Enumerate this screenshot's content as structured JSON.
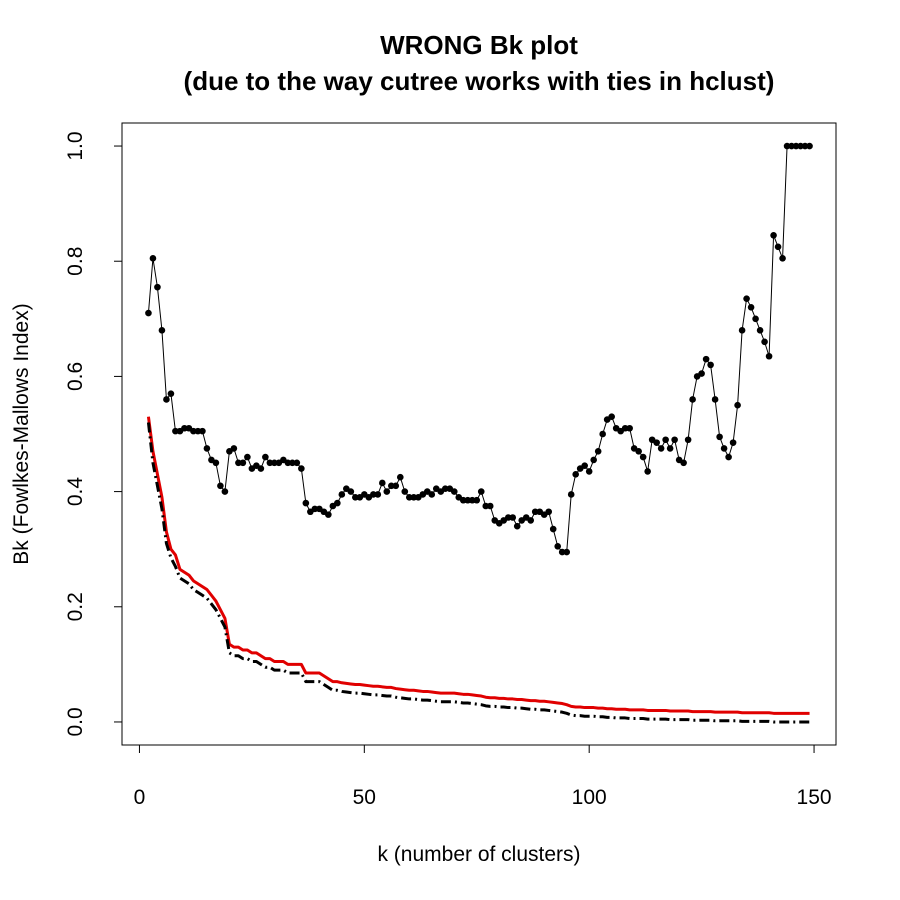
{
  "chart_data": {
    "type": "line",
    "title": [
      "WRONG Bk plot",
      "(due to the way cutree works with ties in hclust)"
    ],
    "x_label": "k (number of clusters)",
    "y_label": "Bk (Fowlkes-Mallows Index)",
    "xlim": [
      -3.88,
      154.88
    ],
    "ylim": [
      -0.04,
      1.04
    ],
    "xticks": [
      0,
      50,
      100,
      150
    ],
    "yticks": [
      {
        "value": 0,
        "label": "0.0"
      },
      {
        "value": 0.2,
        "label": "0.2"
      },
      {
        "value": 0.4,
        "label": "0.4"
      },
      {
        "value": 0.6,
        "label": "0.6"
      },
      {
        "value": 0.8,
        "label": "0.8"
      },
      {
        "value": 1,
        "label": "1.0"
      }
    ],
    "x": [
      2,
      3,
      4,
      5,
      6,
      7,
      8,
      9,
      10,
      11,
      12,
      13,
      14,
      15,
      16,
      17,
      18,
      19,
      20,
      21,
      22,
      23,
      24,
      25,
      26,
      27,
      28,
      29,
      30,
      31,
      32,
      33,
      34,
      35,
      36,
      37,
      38,
      39,
      40,
      41,
      42,
      43,
      44,
      45,
      46,
      47,
      48,
      49,
      50,
      51,
      52,
      53,
      54,
      55,
      56,
      57,
      58,
      59,
      60,
      61,
      62,
      63,
      64,
      65,
      66,
      67,
      68,
      69,
      70,
      71,
      72,
      73,
      74,
      75,
      76,
      77,
      78,
      79,
      80,
      81,
      82,
      83,
      84,
      85,
      86,
      87,
      88,
      89,
      90,
      91,
      92,
      93,
      94,
      95,
      96,
      97,
      98,
      99,
      100,
      101,
      102,
      103,
      104,
      105,
      106,
      107,
      108,
      109,
      110,
      111,
      112,
      113,
      114,
      115,
      116,
      117,
      118,
      119,
      120,
      121,
      122,
      123,
      124,
      125,
      126,
      127,
      128,
      129,
      130,
      131,
      132,
      133,
      134,
      135,
      136,
      137,
      138,
      139,
      140,
      141,
      142,
      143,
      144,
      145,
      146,
      147,
      148,
      149
    ],
    "series": [
      {
        "color": "#000000",
        "style": "points-line",
        "values": [
          0.71,
          0.805,
          0.755,
          0.68,
          0.56,
          0.57,
          0.505,
          0.505,
          0.51,
          0.51,
          0.505,
          0.505,
          0.505,
          0.475,
          0.455,
          0.45,
          0.41,
          0.4,
          0.47,
          0.475,
          0.45,
          0.45,
          0.46,
          0.44,
          0.445,
          0.44,
          0.46,
          0.45,
          0.45,
          0.45,
          0.455,
          0.45,
          0.45,
          0.45,
          0.44,
          0.38,
          0.365,
          0.37,
          0.37,
          0.365,
          0.36,
          0.375,
          0.38,
          0.395,
          0.405,
          0.4,
          0.39,
          0.39,
          0.395,
          0.39,
          0.395,
          0.395,
          0.415,
          0.4,
          0.41,
          0.41,
          0.425,
          0.4,
          0.39,
          0.39,
          0.39,
          0.395,
          0.4,
          0.395,
          0.405,
          0.4,
          0.405,
          0.405,
          0.4,
          0.39,
          0.385,
          0.385,
          0.385,
          0.385,
          0.4,
          0.375,
          0.375,
          0.35,
          0.345,
          0.35,
          0.355,
          0.355,
          0.34,
          0.35,
          0.355,
          0.35,
          0.365,
          0.365,
          0.36,
          0.365,
          0.335,
          0.305,
          0.295,
          0.295,
          0.395,
          0.43,
          0.44,
          0.445,
          0.435,
          0.455,
          0.47,
          0.5,
          0.525,
          0.53,
          0.51,
          0.505,
          0.51,
          0.51,
          0.475,
          0.47,
          0.46,
          0.435,
          0.49,
          0.485,
          0.475,
          0.49,
          0.475,
          0.49,
          0.455,
          0.45,
          0.49,
          0.56,
          0.6,
          0.605,
          0.63,
          0.62,
          0.56,
          0.495,
          0.475,
          0.46,
          0.485,
          0.55,
          0.68,
          0.735,
          0.72,
          0.7,
          0.68,
          0.66,
          0.635,
          0.845,
          0.825,
          0.805,
          1,
          1,
          1,
          1,
          1,
          1
        ]
      },
      {
        "color": "#e00000",
        "style": "line",
        "values": [
          0.53,
          0.47,
          0.43,
          0.39,
          0.33,
          0.3,
          0.29,
          0.265,
          0.26,
          0.255,
          0.245,
          0.24,
          0.235,
          0.23,
          0.22,
          0.21,
          0.195,
          0.18,
          0.135,
          0.13,
          0.13,
          0.125,
          0.125,
          0.12,
          0.12,
          0.115,
          0.11,
          0.11,
          0.105,
          0.105,
          0.105,
          0.1,
          0.1,
          0.1,
          0.1,
          0.085,
          0.085,
          0.085,
          0.085,
          0.08,
          0.075,
          0.07,
          0.07,
          0.068,
          0.067,
          0.066,
          0.065,
          0.065,
          0.064,
          0.063,
          0.062,
          0.062,
          0.061,
          0.06,
          0.06,
          0.058,
          0.057,
          0.056,
          0.055,
          0.055,
          0.054,
          0.053,
          0.053,
          0.052,
          0.051,
          0.05,
          0.05,
          0.05,
          0.05,
          0.049,
          0.048,
          0.048,
          0.047,
          0.046,
          0.045,
          0.043,
          0.042,
          0.042,
          0.041,
          0.041,
          0.04,
          0.04,
          0.039,
          0.039,
          0.038,
          0.037,
          0.037,
          0.036,
          0.036,
          0.035,
          0.034,
          0.033,
          0.032,
          0.03,
          0.027,
          0.026,
          0.026,
          0.025,
          0.025,
          0.025,
          0.024,
          0.024,
          0.023,
          0.023,
          0.022,
          0.022,
          0.022,
          0.021,
          0.021,
          0.021,
          0.021,
          0.02,
          0.02,
          0.02,
          0.02,
          0.02,
          0.019,
          0.019,
          0.019,
          0.019,
          0.019,
          0.018,
          0.018,
          0.018,
          0.018,
          0.018,
          0.017,
          0.017,
          0.017,
          0.017,
          0.017,
          0.017,
          0.016,
          0.016,
          0.016,
          0.016,
          0.016,
          0.016,
          0.016,
          0.015,
          0.015,
          0.015,
          0.015,
          0.015,
          0.015,
          0.015,
          0.015,
          0.015
        ]
      },
      {
        "color": "#000000",
        "style": "dashdot",
        "values": [
          0.52,
          0.45,
          0.41,
          0.37,
          0.31,
          0.285,
          0.27,
          0.25,
          0.245,
          0.24,
          0.23,
          0.225,
          0.22,
          0.215,
          0.205,
          0.195,
          0.18,
          0.165,
          0.12,
          0.115,
          0.115,
          0.11,
          0.11,
          0.105,
          0.105,
          0.1,
          0.095,
          0.095,
          0.09,
          0.09,
          0.09,
          0.085,
          0.085,
          0.085,
          0.085,
          0.07,
          0.07,
          0.07,
          0.07,
          0.065,
          0.06,
          0.055,
          0.055,
          0.053,
          0.052,
          0.051,
          0.05,
          0.05,
          0.049,
          0.048,
          0.047,
          0.047,
          0.046,
          0.045,
          0.045,
          0.043,
          0.042,
          0.041,
          0.04,
          0.04,
          0.039,
          0.038,
          0.038,
          0.037,
          0.036,
          0.035,
          0.035,
          0.035,
          0.035,
          0.034,
          0.033,
          0.033,
          0.032,
          0.031,
          0.03,
          0.028,
          0.027,
          0.027,
          0.026,
          0.026,
          0.025,
          0.025,
          0.024,
          0.024,
          0.023,
          0.022,
          0.022,
          0.021,
          0.021,
          0.02,
          0.019,
          0.018,
          0.017,
          0.015,
          0.012,
          0.011,
          0.011,
          0.01,
          0.01,
          0.01,
          0.009,
          0.009,
          0.008,
          0.008,
          0.007,
          0.007,
          0.007,
          0.006,
          0.006,
          0.006,
          0.006,
          0.005,
          0.005,
          0.005,
          0.005,
          0.005,
          0.004,
          0.004,
          0.004,
          0.004,
          0.004,
          0.003,
          0.003,
          0.003,
          0.003,
          0.003,
          0.002,
          0.002,
          0.002,
          0.002,
          0.002,
          0.002,
          0.001,
          0.001,
          0.001,
          0.001,
          0.001,
          0.001,
          0.001,
          0,
          0,
          0,
          0,
          0,
          0,
          0,
          0,
          0
        ]
      }
    ]
  }
}
